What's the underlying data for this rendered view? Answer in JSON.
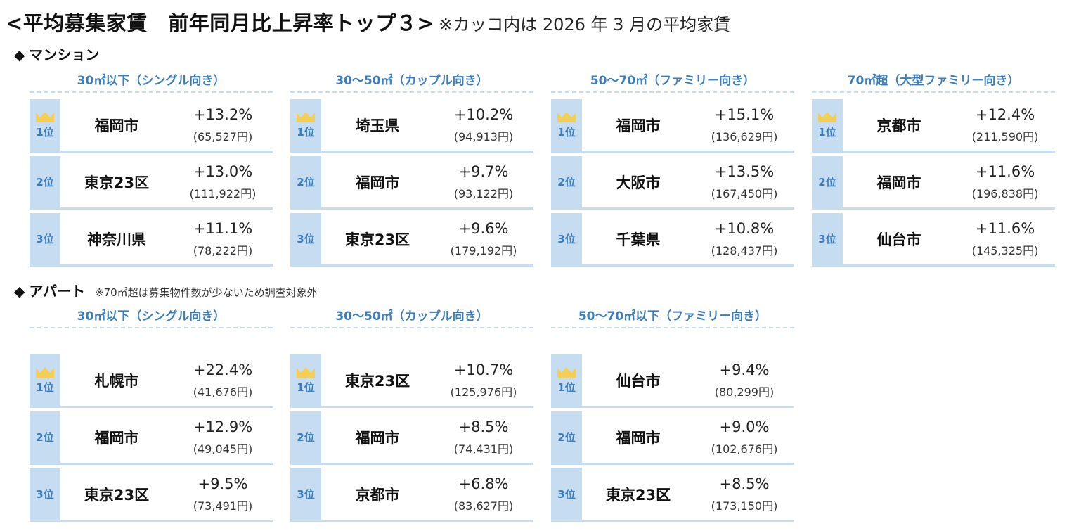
{
  "header": {
    "title": "<平均募集家賃　前年同月比上昇率トップ３>",
    "note": "※カッコ内は 2026 年 3 月の平均家賃"
  },
  "colors": {
    "accent_blue": "#3a7dbf",
    "rank_bg": "#c6dcf0",
    "crown": "#f5cf55"
  },
  "mansion": {
    "diamond": "◆",
    "label": "マンション",
    "groups": [
      {
        "title": "30㎡以下（シングル向き）",
        "rows": [
          {
            "rank": "1位",
            "city": "福岡市",
            "rate": "+13.2%",
            "rent": "(65,527円)"
          },
          {
            "rank": "2位",
            "city": "東京23区",
            "rate": "+13.0%",
            "rent": "(111,922円)"
          },
          {
            "rank": "3位",
            "city": "神奈川県",
            "rate": "+11.1%",
            "rent": "(78,222円)"
          }
        ]
      },
      {
        "title": "30～50㎡（カップル向き）",
        "rows": [
          {
            "rank": "1位",
            "city": "埼玉県",
            "rate": "+10.2%",
            "rent": "(94,913円)"
          },
          {
            "rank": "2位",
            "city": "福岡市",
            "rate": "+9.7%",
            "rent": "(93,122円)"
          },
          {
            "rank": "3位",
            "city": "東京23区",
            "rate": "+9.6%",
            "rent": "(179,192円)"
          }
        ]
      },
      {
        "title": "50～70㎡（ファミリー向き）",
        "rows": [
          {
            "rank": "1位",
            "city": "福岡市",
            "rate": "+15.1%",
            "rent": "(136,629円)"
          },
          {
            "rank": "2位",
            "city": "大阪市",
            "rate": "+13.5%",
            "rent": "(167,450円)"
          },
          {
            "rank": "3位",
            "city": "千葉県",
            "rate": "+10.8%",
            "rent": "(128,437円)"
          }
        ]
      },
      {
        "title": "70㎡超（大型ファミリー向き）",
        "rows": [
          {
            "rank": "1位",
            "city": "京都市",
            "rate": "+12.4%",
            "rent": "(211,590円)"
          },
          {
            "rank": "2位",
            "city": "福岡市",
            "rate": "+11.6%",
            "rent": "(196,838円)"
          },
          {
            "rank": "3位",
            "city": "仙台市",
            "rate": "+11.6%",
            "rent": "(145,325円)"
          }
        ]
      }
    ]
  },
  "apartment": {
    "diamond": "◆",
    "label": "アパート",
    "sub": "※70㎡超は募集物件数が少ないため調査対象外",
    "groups": [
      {
        "title": "30㎡以下（シングル向き）",
        "rows": [
          {
            "rank": "1位",
            "city": "札幌市",
            "rate": "+22.4%",
            "rent": "(41,676円)"
          },
          {
            "rank": "2位",
            "city": "福岡市",
            "rate": "+12.9%",
            "rent": "(49,045円)"
          },
          {
            "rank": "3位",
            "city": "東京23区",
            "rate": "+9.5%",
            "rent": "(73,491円)"
          }
        ]
      },
      {
        "title": "30～50㎡（カップル向き）",
        "rows": [
          {
            "rank": "1位",
            "city": "東京23区",
            "rate": "+10.7%",
            "rent": "(125,976円)"
          },
          {
            "rank": "2位",
            "city": "福岡市",
            "rate": "+8.5%",
            "rent": "(74,431円)"
          },
          {
            "rank": "3位",
            "city": "京都市",
            "rate": "+6.8%",
            "rent": "(83,627円)"
          }
        ]
      },
      {
        "title": "50～70㎡以下（ファミリー向き）",
        "rows": [
          {
            "rank": "1位",
            "city": "仙台市",
            "rate": "+9.4%",
            "rent": "(80,299円)"
          },
          {
            "rank": "2位",
            "city": "福岡市",
            "rate": "+9.0%",
            "rent": "(102,676円)"
          },
          {
            "rank": "3位",
            "city": "東京23区",
            "rate": "+8.5%",
            "rent": "(173,150円)"
          }
        ]
      }
    ]
  }
}
